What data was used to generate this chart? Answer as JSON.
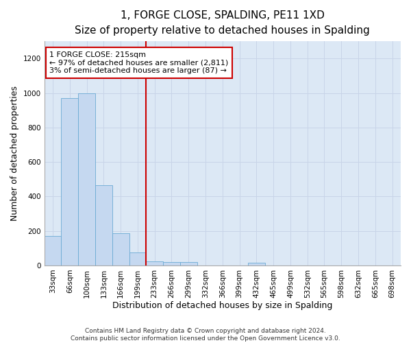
{
  "title": "1, FORGE CLOSE, SPALDING, PE11 1XD",
  "subtitle": "Size of property relative to detached houses in Spalding",
  "xlabel": "Distribution of detached houses by size in Spalding",
  "ylabel": "Number of detached properties",
  "categories": [
    "33sqm",
    "66sqm",
    "100sqm",
    "133sqm",
    "166sqm",
    "199sqm",
    "233sqm",
    "266sqm",
    "299sqm",
    "332sqm",
    "366sqm",
    "399sqm",
    "432sqm",
    "465sqm",
    "499sqm",
    "532sqm",
    "565sqm",
    "598sqm",
    "632sqm",
    "665sqm",
    "698sqm"
  ],
  "values": [
    170,
    970,
    1000,
    466,
    185,
    75,
    25,
    20,
    20,
    0,
    0,
    0,
    15,
    0,
    0,
    0,
    0,
    0,
    0,
    0,
    0
  ],
  "bar_color": "#c5d8f0",
  "bar_edge_color": "#6aaad4",
  "grid_color": "#c8d4e8",
  "background_color": "#dce8f5",
  "red_line_x": 5.48,
  "red_line_color": "#cc0000",
  "annotation_line1": "1 FORGE CLOSE: 215sqm",
  "annotation_line2": "← 97% of detached houses are smaller (2,811)",
  "annotation_line3": "3% of semi-detached houses are larger (87) →",
  "ylim": [
    0,
    1300
  ],
  "yticks": [
    0,
    200,
    400,
    600,
    800,
    1000,
    1200
  ],
  "footer_line1": "Contains HM Land Registry data © Crown copyright and database right 2024.",
  "footer_line2": "Contains public sector information licensed under the Open Government Licence v3.0.",
  "title_fontsize": 11,
  "subtitle_fontsize": 9.5,
  "axis_label_fontsize": 9,
  "tick_fontsize": 7.5,
  "annotation_fontsize": 8,
  "footer_fontsize": 6.5
}
